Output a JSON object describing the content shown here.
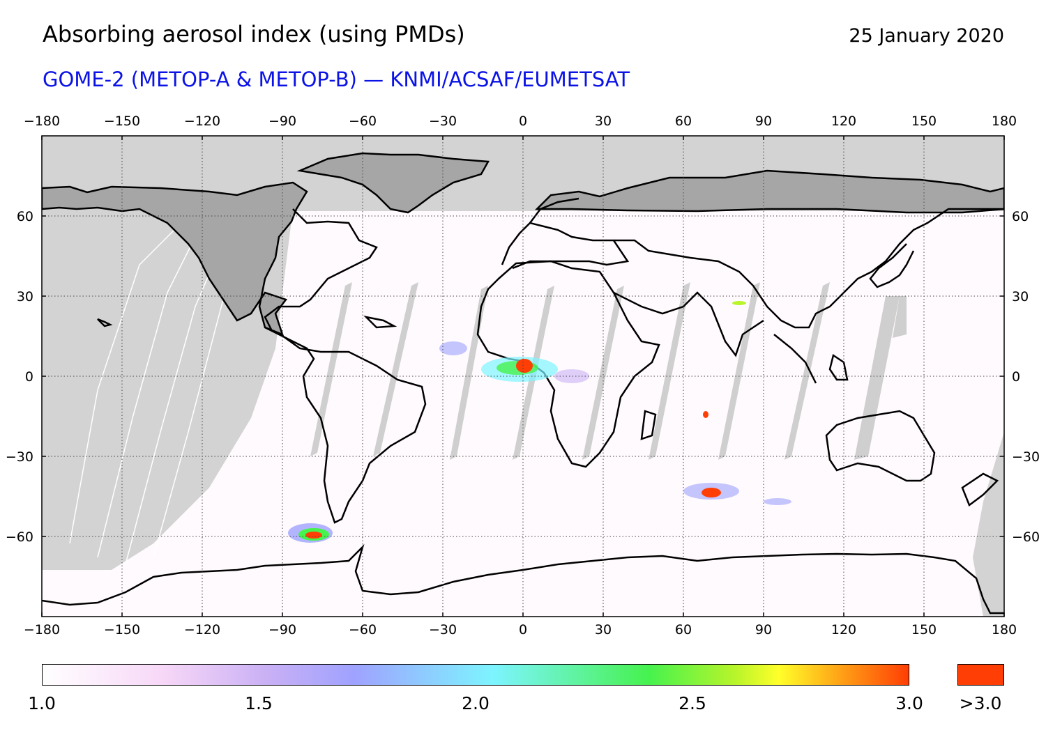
{
  "header": {
    "title": "Absorbing aerosol index (using PMDs)",
    "date": "25 January 2020",
    "subtitle": "GOME-2 (METOP-A & METOP-B) — KNMI/ACSAF/EUMETSAT"
  },
  "map": {
    "lon_ticks": [
      "−180",
      "−150",
      "−120",
      "−90",
      "−60",
      "−30",
      "0",
      "30",
      "60",
      "90",
      "120",
      "150",
      "180"
    ],
    "lat_ticks": [
      "60",
      "30",
      "0",
      "−30",
      "−60"
    ],
    "colors": {
      "no_data_light": "#d3d3d3",
      "no_data_dark": "#a6a6a6",
      "coast": "#000000",
      "grid": "#444444"
    }
  },
  "colorbar": {
    "labels": [
      "1.0",
      "1.5",
      "2.0",
      "2.5",
      "3.0"
    ],
    "over_label": ">3.0",
    "over_color": "#ff3e05"
  }
}
